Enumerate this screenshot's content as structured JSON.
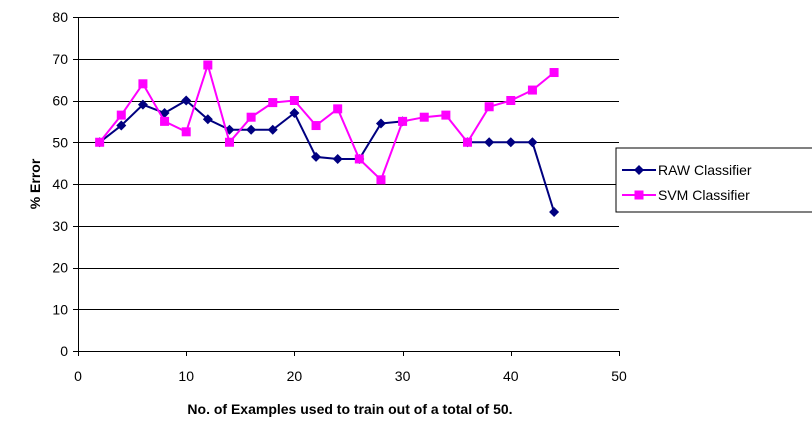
{
  "chart_data": {
    "type": "line",
    "xlabel": "No. of Examples used to train out of a total of 50.",
    "ylabel": "% Error",
    "xlim": [
      0,
      50
    ],
    "ylim": [
      0,
      80
    ],
    "xticks": [
      0,
      10,
      20,
      30,
      40,
      50
    ],
    "yticks": [
      0,
      10,
      20,
      30,
      40,
      50,
      60,
      70,
      80
    ],
    "grid": "horizontal",
    "legend_position": "right",
    "series": [
      {
        "name": "RAW Classifier",
        "color": "#000080",
        "marker": "diamond",
        "points": [
          [
            2,
            50
          ],
          [
            4,
            54
          ],
          [
            6,
            59
          ],
          [
            8,
            57
          ],
          [
            10,
            60
          ],
          [
            12,
            55.5
          ],
          [
            14,
            53
          ],
          [
            16,
            53
          ],
          [
            18,
            53
          ],
          [
            20,
            57
          ],
          [
            22,
            46.5
          ],
          [
            24,
            46
          ],
          [
            26,
            46
          ],
          [
            28,
            54.5
          ],
          [
            30,
            55
          ],
          [
            32,
            null
          ],
          [
            34,
            null
          ],
          [
            36,
            50
          ],
          [
            38,
            50
          ],
          [
            40,
            50
          ],
          [
            42,
            50
          ],
          [
            44,
            33.3
          ]
        ]
      },
      {
        "name": "SVM Classifier",
        "color": "#ff00ff",
        "marker": "square",
        "points": [
          [
            2,
            50
          ],
          [
            4,
            56.5
          ],
          [
            6,
            64
          ],
          [
            8,
            55
          ],
          [
            10,
            52.5
          ],
          [
            12,
            68.5
          ],
          [
            14,
            50
          ],
          [
            16,
            56
          ],
          [
            18,
            59.5
          ],
          [
            20,
            60
          ],
          [
            22,
            54
          ],
          [
            24,
            58
          ],
          [
            26,
            46
          ],
          [
            28,
            41
          ],
          [
            30,
            55
          ],
          [
            32,
            56
          ],
          [
            34,
            56.5
          ],
          [
            36,
            50
          ],
          [
            38,
            58.5
          ],
          [
            40,
            60
          ],
          [
            42,
            62.5
          ],
          [
            44,
            66.7
          ]
        ]
      }
    ]
  }
}
